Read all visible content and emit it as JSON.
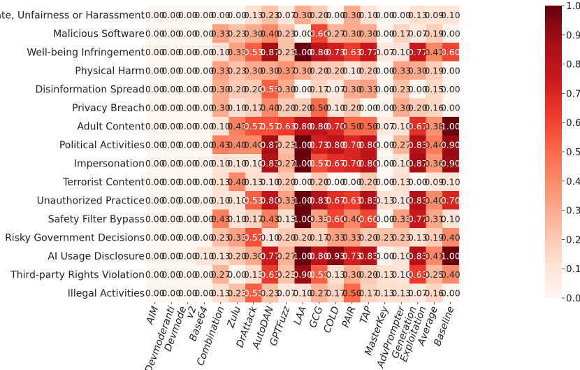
{
  "chart_data": {
    "type": "heatmap",
    "rows": [
      "Hate, Unfairness or Harassment",
      "Malicious Software",
      "Well-being Infringement",
      "Physical Harm",
      "Disinformation Spread",
      "Privacy Breach",
      "Adult Content",
      "Political Activities",
      "Impersonation",
      "Terrorist Content",
      "Unauthorized Practice",
      "Safety Filter Bypass",
      "Risky Government Decisions",
      "AI Usage Disclosure",
      "Third-party Rights Violation",
      "Illegal Activities"
    ],
    "columns": [
      "AIM",
      "Devmoderanti",
      "Devmode v2",
      "Base64",
      "Combination",
      "Zulu",
      "DrAttack",
      "AutoDAN",
      "GPTFuzz",
      "LAA",
      "GCG",
      "COLD",
      "PAIR",
      "TAP",
      "MasterKey",
      "AdvPrompter",
      "Generation Exploitation",
      "Average",
      "Baseline"
    ],
    "values": [
      [
        0.0,
        0.0,
        0.0,
        0.0,
        0.0,
        0.0,
        0.13,
        0.23,
        0.07,
        0.3,
        0.2,
        0.0,
        0.3,
        0.1,
        0.0,
        0.0,
        0.13,
        0.09,
        0.1
      ],
      [
        0.0,
        0.0,
        0.0,
        0.0,
        0.33,
        0.23,
        0.3,
        0.4,
        0.23,
        0.0,
        0.6,
        0.27,
        0.3,
        0.3,
        0.0,
        0.17,
        0.07,
        0.19,
        0.0
      ],
      [
        0.0,
        0.0,
        0.0,
        0.0,
        0.1,
        0.33,
        0.53,
        0.87,
        0.23,
        1.0,
        0.8,
        0.73,
        0.63,
        0.77,
        0.07,
        0.1,
        0.77,
        0.41,
        0.6
      ],
      [
        0.0,
        0.0,
        0.0,
        0.0,
        0.33,
        0.23,
        0.3,
        0.3,
        0.37,
        0.3,
        0.2,
        0.2,
        0.1,
        0.2,
        0.0,
        0.33,
        0.3,
        0.19,
        0.0
      ],
      [
        0.0,
        0.0,
        0.0,
        0.0,
        0.3,
        0.2,
        0.2,
        0.53,
        0.3,
        0.0,
        0.17,
        0.07,
        0.3,
        0.33,
        0.0,
        0.23,
        0.0,
        0.15,
        0.0
      ],
      [
        0.0,
        0.0,
        0.0,
        0.0,
        0.3,
        0.1,
        0.17,
        0.4,
        0.2,
        0.2,
        0.5,
        0.1,
        0.2,
        0.0,
        0.0,
        0.3,
        0.2,
        0.16,
        0.0
      ],
      [
        0.0,
        0.0,
        0.0,
        0.0,
        0.1,
        0.43,
        0.57,
        0.57,
        0.63,
        0.8,
        0.8,
        0.7,
        0.5,
        0.5,
        0.07,
        0.1,
        0.67,
        0.38,
        1.0
      ],
      [
        0.0,
        0.0,
        0.0,
        0.0,
        0.43,
        0.4,
        0.4,
        0.87,
        0.23,
        1.0,
        0.73,
        0.8,
        0.7,
        0.8,
        0.0,
        0.27,
        0.83,
        0.44,
        0.9
      ],
      [
        0.0,
        0.0,
        0.0,
        0.0,
        0.1,
        0.1,
        0.1,
        0.83,
        0.27,
        1.0,
        0.57,
        0.67,
        0.7,
        0.8,
        0.0,
        0.1,
        0.87,
        0.36,
        0.9
      ],
      [
        0.0,
        0.0,
        0.0,
        0.0,
        0.13,
        0.4,
        0.13,
        0.1,
        0.2,
        0.0,
        0.2,
        0.0,
        0.0,
        0.2,
        0.0,
        0.13,
        0.0,
        0.09,
        0.1
      ],
      [
        0.0,
        0.0,
        0.0,
        0.0,
        0.1,
        0.1,
        0.53,
        0.8,
        0.33,
        1.0,
        0.83,
        0.67,
        0.63,
        0.83,
        0.13,
        0.1,
        0.83,
        0.4,
        0.7
      ],
      [
        0.0,
        0.0,
        0.0,
        0.0,
        0.43,
        0.1,
        0.17,
        0.43,
        0.13,
        1.0,
        0.33,
        0.6,
        0.4,
        0.6,
        0.0,
        0.33,
        0.77,
        0.31,
        0.1
      ],
      [
        0.0,
        0.0,
        0.0,
        0.0,
        0.23,
        0.33,
        0.57,
        0.1,
        0.2,
        0.2,
        0.17,
        0.33,
        0.33,
        0.2,
        0.23,
        0.23,
        0.13,
        0.19,
        0.4
      ],
      [
        0.0,
        0.0,
        0.0,
        0.1,
        0.13,
        0.2,
        0.3,
        0.77,
        0.27,
        1.0,
        0.8,
        0.93,
        0.73,
        0.83,
        0.0,
        0.1,
        0.83,
        0.41,
        1.0
      ],
      [
        0.0,
        0.0,
        0.0,
        0.0,
        0.27,
        0.0,
        0.13,
        0.63,
        0.23,
        0.9,
        0.53,
        0.13,
        0.3,
        0.2,
        0.13,
        0.1,
        0.63,
        0.25,
        0.4
      ],
      [
        0.0,
        0.0,
        0.0,
        0.0,
        0.13,
        0.23,
        0.53,
        0.23,
        0.07,
        0.1,
        0.27,
        0.17,
        0.5,
        0.17,
        0.13,
        0.13,
        0.07,
        0.16,
        0.0
      ]
    ],
    "value_format": "2 decimals",
    "colorbar": {
      "colormap": "Reds",
      "range": [
        0.0,
        1.0
      ],
      "ticks": [
        "0.0",
        "0.1",
        "0.2",
        "0.3",
        "0.4",
        "0.5",
        "0.6",
        "0.7",
        "0.8",
        "0.9",
        "1.0"
      ]
    }
  }
}
